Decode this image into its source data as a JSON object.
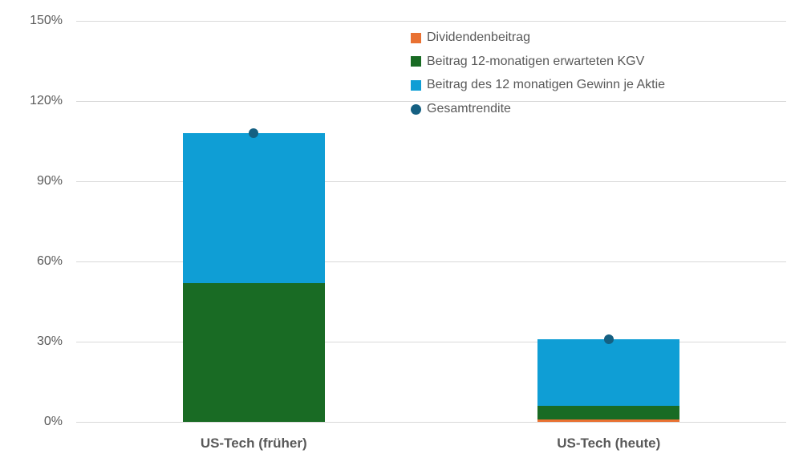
{
  "chart_data": {
    "type": "bar",
    "stacked": true,
    "title": "",
    "xlabel": "",
    "ylabel": "",
    "categories": [
      "US-Tech (früher)",
      "US-Tech (heute)"
    ],
    "series": [
      {
        "name": "Dividendenbeitrag",
        "type": "bar",
        "color": "#E97132",
        "values": [
          0,
          1
        ]
      },
      {
        "name": "Beitrag 12-monatigen erwarteten KGV",
        "type": "bar",
        "color": "#196B24",
        "values": [
          52,
          5
        ]
      },
      {
        "name": "Beitrag des 12 monatigen Gewinn je Aktie",
        "type": "bar",
        "color": "#0F9ED5",
        "values": [
          56,
          25
        ]
      },
      {
        "name": "Gesamtrendite",
        "type": "point",
        "color": "#156082",
        "values": [
          108,
          31
        ]
      }
    ],
    "ylim": [
      0,
      150
    ],
    "ytick_step": 30,
    "ytick_labels": [
      "0%",
      "30%",
      "60%",
      "90%",
      "120%",
      "150%"
    ],
    "grid": true,
    "gridline_color": "#D9D9D9",
    "background_color": "#FFFFFF",
    "text_color": "#595959",
    "legend_position": "top-center"
  }
}
